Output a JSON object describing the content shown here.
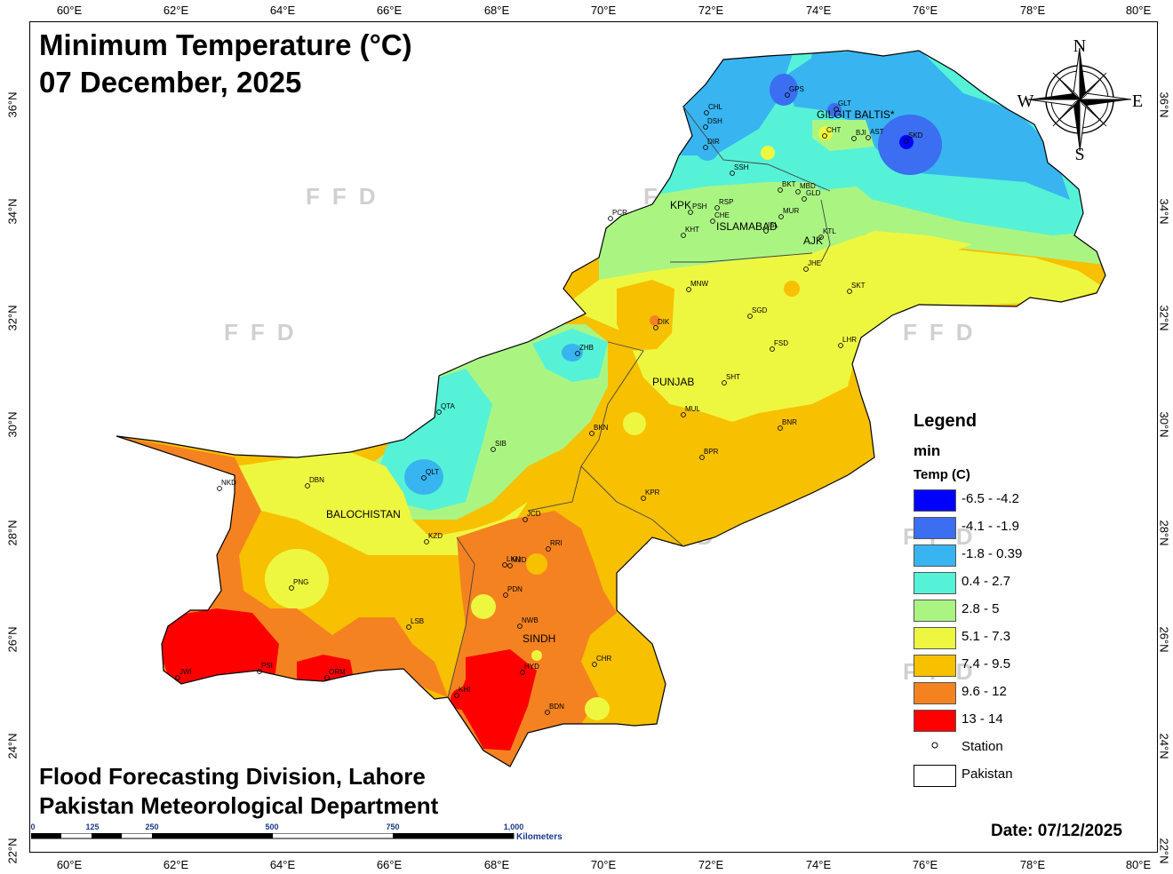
{
  "title": {
    "line1": "Minimum Temperature (°C)",
    "line2": "07 December, 2025"
  },
  "credits": {
    "line1": "Flood Forecasting Division, Lahore",
    "line2": "Pakistan Meteorological Department"
  },
  "date_label": "Date: 07/12/2025",
  "axes": {
    "lon_ticks": [
      "60°E",
      "62°E",
      "64°E",
      "66°E",
      "68°E",
      "70°E",
      "72°E",
      "74°E",
      "76°E",
      "78°E",
      "80°E"
    ],
    "lat_ticks": [
      "36°N",
      "34°N",
      "32°N",
      "30°N",
      "28°N",
      "26°N",
      "24°N",
      "22°N"
    ]
  },
  "compass": {
    "n": "N",
    "s": "S",
    "e": "E",
    "w": "W"
  },
  "watermark": "FFD",
  "legend": {
    "title": "Legend",
    "field": "min",
    "unit_label": "Temp (C)",
    "classes": [
      {
        "label": "-6.5 - -4.2",
        "color": "#0000ff"
      },
      {
        "label": "-4.1 - -1.9",
        "color": "#3b6ef0"
      },
      {
        "label": "-1.8 - 0.39",
        "color": "#38b4f0"
      },
      {
        "label": "0.4 - 2.7",
        "color": "#55f2d8"
      },
      {
        "label": "2.8 - 5",
        "color": "#aaf582"
      },
      {
        "label": "5.1 - 7.3",
        "color": "#eef740"
      },
      {
        "label": "7.4 - 9.5",
        "color": "#f7c000"
      },
      {
        "label": "9.6 - 12",
        "color": "#f58220"
      },
      {
        "label": "13 - 14",
        "color": "#ff0000"
      }
    ],
    "station_label": "Station",
    "boundary_label": "Pakistan"
  },
  "regions": [
    {
      "name": "GILGIT BALTIS*"
    },
    {
      "name": "KPK"
    },
    {
      "name": "ISLAMABAD"
    },
    {
      "name": "AJK"
    },
    {
      "name": "PUNJAB"
    },
    {
      "name": "BALOCHISTAN"
    },
    {
      "name": "SINDH"
    }
  ],
  "stations": [
    "GPS",
    "GLT",
    "CHL",
    "DSH",
    "DIR",
    "CHT",
    "BJI",
    "AST",
    "SKD",
    "SSH",
    "BKT",
    "MBD",
    "GLD",
    "PCR",
    "PSH",
    "RSP",
    "KHT",
    "CHE",
    "ISL",
    "MUR",
    "KTL",
    "JHE",
    "SKT",
    "MNW",
    "SGD",
    "DIK",
    "FSD",
    "LHR",
    "ZHB",
    "SHT",
    "QTA",
    "MUL",
    "BKN",
    "BNR",
    "SIB",
    "QLT",
    "BPR",
    "NKD",
    "DBN",
    "KPR",
    "JCD",
    "KZD",
    "RRI",
    "LKN",
    "MJD",
    "PNG",
    "PDN",
    "LSB",
    "NWB",
    "CHR",
    "PSI",
    "JWI",
    "ORM",
    "HYD",
    "KHI",
    "BDN"
  ],
  "scalebar": {
    "ticks": [
      "0",
      "125",
      "250",
      "500",
      "750",
      "1,000"
    ],
    "unit": "Kilometers"
  }
}
